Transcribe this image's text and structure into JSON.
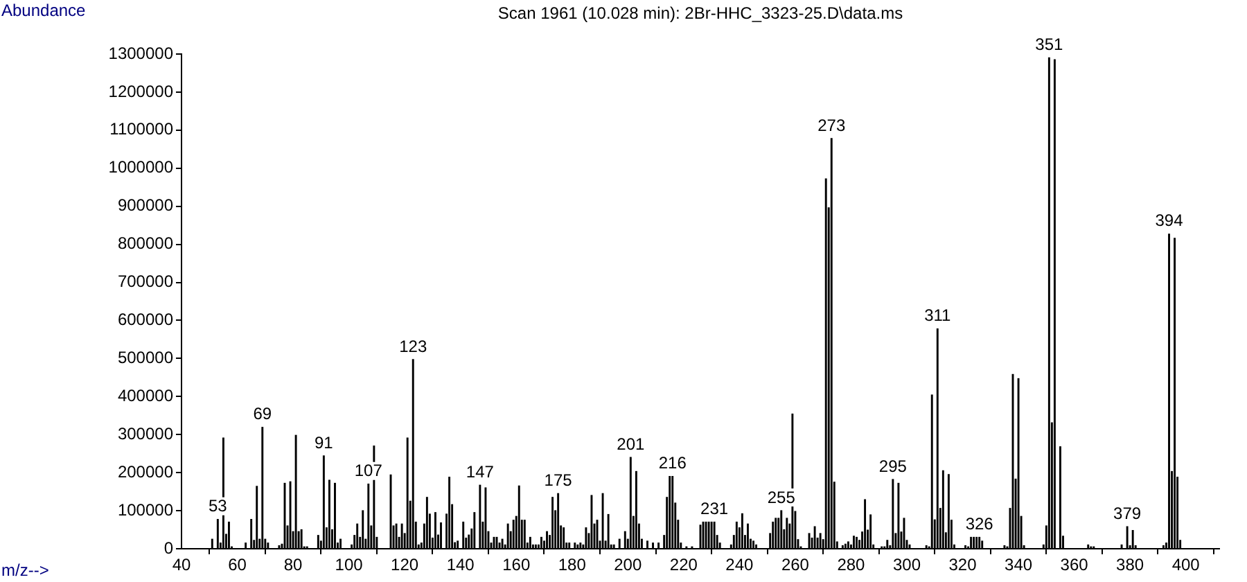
{
  "chart_data": {
    "type": "bar",
    "title": "Scan 1961 (10.028 min): 2Br-HHC_3323-25.D\\data.ms",
    "xlabel": "m/z-->",
    "ylabel": "Abundance",
    "color": "#000000",
    "grid": false,
    "legend": false,
    "x": [
      51,
      53,
      54,
      55,
      56,
      57,
      58,
      63,
      65,
      66,
      67,
      68,
      69,
      70,
      71,
      75,
      76,
      77,
      78,
      79,
      80,
      81,
      82,
      83,
      84,
      85,
      89,
      90,
      91,
      92,
      93,
      94,
      95,
      96,
      97,
      101,
      102,
      103,
      104,
      105,
      106,
      107,
      108,
      109,
      110,
      115,
      116,
      117,
      118,
      119,
      120,
      121,
      122,
      123,
      124,
      125,
      126,
      127,
      128,
      129,
      130,
      131,
      132,
      133,
      135,
      136,
      137,
      138,
      139,
      141,
      142,
      143,
      144,
      145,
      147,
      148,
      149,
      150,
      151,
      152,
      153,
      154,
      155,
      156,
      157,
      158,
      159,
      160,
      161,
      162,
      163,
      164,
      165,
      166,
      167,
      168,
      169,
      170,
      171,
      172,
      173,
      174,
      175,
      176,
      177,
      178,
      179,
      181,
      182,
      183,
      184,
      185,
      186,
      187,
      188,
      189,
      190,
      191,
      192,
      193,
      194,
      195,
      197,
      199,
      200,
      201,
      202,
      203,
      204,
      205,
      207,
      209,
      211,
      213,
      214,
      215,
      216,
      217,
      218,
      219,
      221,
      223,
      226,
      227,
      228,
      229,
      230,
      231,
      232,
      233,
      237,
      238,
      239,
      240,
      241,
      242,
      243,
      244,
      245,
      246,
      251,
      252,
      253,
      254,
      255,
      256,
      257,
      258,
      259,
      260,
      261,
      262,
      265,
      266,
      267,
      268,
      269,
      270,
      271,
      272,
      273,
      274,
      275,
      277,
      278,
      279,
      280,
      281,
      282,
      283,
      284,
      285,
      286,
      287,
      288,
      291,
      292,
      293,
      294,
      295,
      296,
      297,
      298,
      299,
      300,
      301,
      307,
      308,
      309,
      310,
      311,
      312,
      313,
      314,
      315,
      316,
      317,
      321,
      322,
      323,
      324,
      325,
      326,
      327,
      335,
      336,
      337,
      338,
      339,
      340,
      341,
      342,
      349,
      350,
      351,
      352,
      353,
      355,
      356,
      365,
      366,
      367,
      377,
      379,
      380,
      381,
      382,
      392,
      393,
      394,
      395,
      396,
      397,
      398
    ],
    "values": [
      25000,
      77000,
      15000,
      291000,
      38000,
      70000,
      5000,
      15000,
      77000,
      22000,
      164000,
      25000,
      319000,
      25000,
      15000,
      8000,
      12000,
      172000,
      60000,
      176000,
      45000,
      298000,
      45000,
      50000,
      5000,
      5000,
      35000,
      20000,
      244000,
      55000,
      180000,
      50000,
      172000,
      15000,
      25000,
      10000,
      35000,
      65000,
      30000,
      100000,
      25000,
      170000,
      60000,
      270000,
      30000,
      194000,
      60000,
      65000,
      30000,
      65000,
      40000,
      291000,
      125000,
      497000,
      70000,
      10000,
      15000,
      65000,
      135000,
      91000,
      28000,
      95000,
      36000,
      68000,
      91000,
      188000,
      116000,
      16000,
      20000,
      70000,
      28000,
      36000,
      52000,
      95000,
      167000,
      70000,
      160000,
      45000,
      15000,
      30000,
      30000,
      15000,
      25000,
      10000,
      65000,
      45000,
      75000,
      85000,
      165000,
      75000,
      75000,
      15000,
      30000,
      10000,
      10000,
      10000,
      30000,
      20000,
      45000,
      35000,
      135000,
      100000,
      145000,
      60000,
      55000,
      15000,
      15000,
      15000,
      10000,
      15000,
      10000,
      55000,
      40000,
      140000,
      65000,
      75000,
      20000,
      145000,
      20000,
      90000,
      10000,
      10000,
      25000,
      45000,
      25000,
      240000,
      85000,
      203000,
      65000,
      25000,
      20000,
      15000,
      15000,
      35000,
      135000,
      190000,
      190000,
      120000,
      75000,
      15000,
      5000,
      5000,
      62000,
      70000,
      70000,
      70000,
      70000,
      70000,
      35000,
      15000,
      10000,
      35000,
      70000,
      55000,
      92000,
      35000,
      65000,
      25000,
      20000,
      10000,
      40000,
      70000,
      80000,
      80000,
      100000,
      50000,
      80000,
      65000,
      354000,
      98000,
      24000,
      5000,
      40000,
      28000,
      58000,
      28000,
      40000,
      24000,
      972000,
      896000,
      1078000,
      175000,
      18000,
      8000,
      12000,
      18000,
      10000,
      33000,
      30000,
      22000,
      44000,
      129000,
      49000,
      89000,
      10000,
      5000,
      5000,
      22000,
      8000,
      182000,
      40000,
      172000,
      44000,
      80000,
      22000,
      10000,
      8000,
      5000,
      404000,
      76000,
      578000,
      106000,
      205000,
      42000,
      195000,
      75000,
      10000,
      8000,
      5000,
      30000,
      30000,
      30000,
      30000,
      20000,
      8000,
      5000,
      106000,
      458000,
      183000,
      447000,
      85000,
      8000,
      10000,
      60000,
      1290000,
      331000,
      1285000,
      268000,
      33000,
      10000,
      5000,
      5000,
      10000,
      58000,
      8000,
      48000,
      8000,
      8000,
      15000,
      827000,
      203000,
      816000,
      188000,
      22000
    ],
    "xlim": [
      40,
      412
    ],
    "xticks": [
      40,
      60,
      80,
      100,
      120,
      140,
      160,
      180,
      200,
      220,
      240,
      260,
      280,
      300,
      320,
      340,
      360,
      380,
      400
    ],
    "ylim": [
      0,
      1300000
    ],
    "yticks": [
      0,
      100000,
      200000,
      300000,
      400000,
      500000,
      600000,
      700000,
      800000,
      900000,
      1000000,
      1100000,
      1200000,
      1300000
    ],
    "annotations": [
      {
        "text": "53",
        "x": 53,
        "y": 77000
      },
      {
        "text": "69",
        "x": 69,
        "y": 319000
      },
      {
        "text": "91",
        "x": 91,
        "y": 244000
      },
      {
        "text": "107",
        "x": 107,
        "y": 170000
      },
      {
        "text": "123",
        "x": 123,
        "y": 497000
      },
      {
        "text": "147",
        "x": 147,
        "y": 167000
      },
      {
        "text": "175",
        "x": 175,
        "y": 145000
      },
      {
        "text": "201",
        "x": 201,
        "y": 240000
      },
      {
        "text": "216",
        "x": 216,
        "y": 190000
      },
      {
        "text": "231",
        "x": 231,
        "y": 70000
      },
      {
        "text": "255",
        "x": 255,
        "y": 100000
      },
      {
        "text": "273",
        "x": 273,
        "y": 1078000
      },
      {
        "text": "295",
        "x": 295,
        "y": 182000
      },
      {
        "text": "311",
        "x": 311,
        "y": 578000
      },
      {
        "text": "326",
        "x": 326,
        "y": 30000
      },
      {
        "text": "351",
        "x": 351,
        "y": 1290000
      },
      {
        "text": "379",
        "x": 379,
        "y": 58000
      },
      {
        "text": "394",
        "x": 394,
        "y": 827000
      }
    ]
  }
}
